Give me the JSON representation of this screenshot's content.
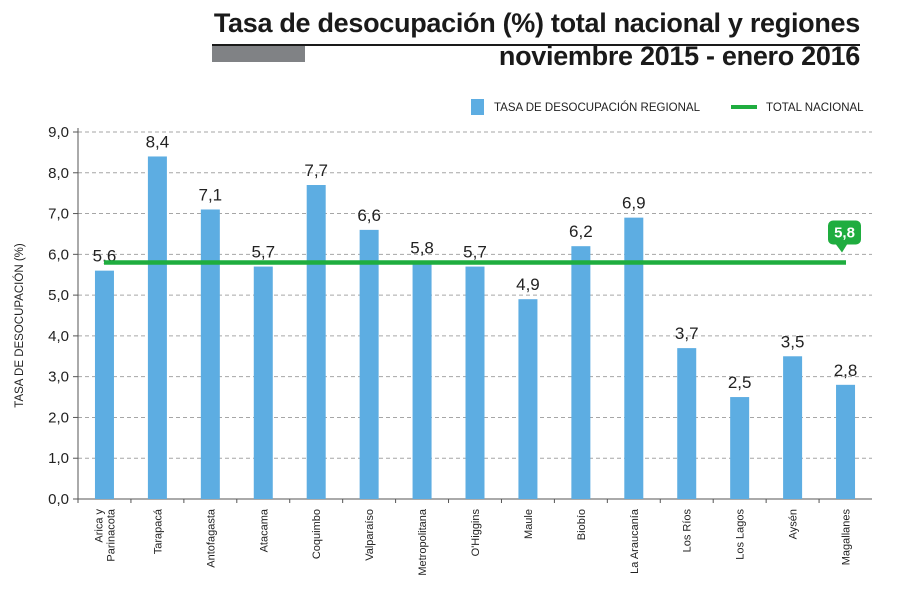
{
  "header": {
    "title_line1": "Tasa de desocupación (%) total nacional y regiones",
    "title_line2": "noviembre 2015 - enero 2016"
  },
  "colors": {
    "bar": "#5dade2",
    "national_line": "#1fad3f",
    "grid": "#a6a6a6",
    "title_bar": "#808285"
  },
  "chart_data": {
    "type": "bar",
    "title": "Tasa de desocupación (%) total nacional y regiones",
    "subtitle": "noviembre 2015 - enero 2016",
    "xlabel": "",
    "ylabel": "TASA DE DESOCUPACIÓN (%)",
    "ylim": [
      0,
      9
    ],
    "yticks": [
      "0,0",
      "1,0",
      "2,0",
      "3,0",
      "4,0",
      "5,0",
      "6,0",
      "7,0",
      "8,0",
      "9,0"
    ],
    "grid": true,
    "legend_position": "top-right",
    "categories": [
      [
        "Arica y",
        "Parinacota"
      ],
      [
        "Tarapacá"
      ],
      [
        "Antofagasta"
      ],
      [
        "Atacama"
      ],
      [
        "Coquimbo"
      ],
      [
        "Valparaíso"
      ],
      [
        "Metropolitana"
      ],
      [
        "O'Higgins"
      ],
      [
        "Maule"
      ],
      [
        "Biobío"
      ],
      [
        "La Araucanía"
      ],
      [
        "Los Ríos"
      ],
      [
        "Los Lagos"
      ],
      [
        "Aysén"
      ],
      [
        "Magallanes"
      ]
    ],
    "series": [
      {
        "name": "TASA DE DESOCUPACIÓN REGIONAL",
        "type": "bar",
        "values": [
          5.6,
          8.4,
          7.1,
          5.7,
          7.7,
          6.6,
          5.8,
          5.7,
          4.9,
          6.2,
          6.9,
          3.7,
          2.5,
          3.5,
          2.8
        ],
        "labels": [
          "5,6",
          "8,4",
          "7,1",
          "5,7",
          "7,7",
          "6,6",
          "5,8",
          "5,7",
          "4,9",
          "6,2",
          "6,9",
          "3,7",
          "2,5",
          "3,5",
          "2,8"
        ]
      },
      {
        "name": "TOTAL NACIONAL",
        "type": "line",
        "value": 5.8,
        "label": "5,8"
      }
    ]
  }
}
